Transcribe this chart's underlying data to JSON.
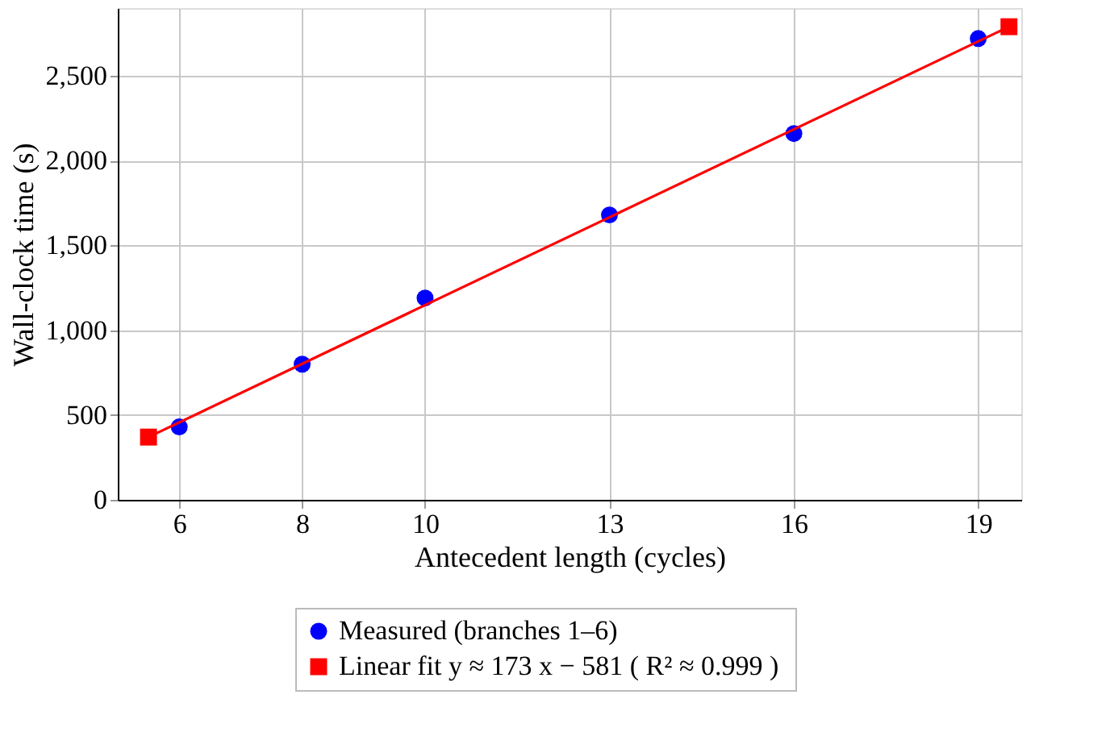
{
  "chart_data": {
    "type": "scatter",
    "xlabel": "Antecedent length (cycles)",
    "ylabel": "Wall-clock time (s)",
    "xlim": [
      5,
      19.7
    ],
    "xticks": [
      6,
      8,
      10,
      13,
      16,
      19
    ],
    "ylim": [
      0,
      2900
    ],
    "yticks": [
      0,
      500,
      {
        "value": 1000,
        "label": "1,000"
      },
      {
        "value": 1500,
        "label": "1,500"
      },
      {
        "value": 2000,
        "label": "2,000"
      },
      {
        "value": 2500,
        "label": "2,500"
      }
    ],
    "grid": true,
    "legend": "bottom",
    "series": [
      {
        "name": "Measured (branches 1–6)",
        "marker": "circle",
        "color": "#0000ff",
        "x": [
          6,
          8,
          10,
          13,
          16,
          19
        ],
        "values": [
          430,
          800,
          1190,
          1680,
          2160,
          2720
        ]
      },
      {
        "name": "Linear fit y ≈ 173 x − 581  ( R² ≈ 0.999 )",
        "type": "line",
        "marker": "square",
        "line_style": "solid",
        "color": "#ff0000",
        "x": [
          5.5,
          19.5
        ],
        "values": [
          370,
          2790
        ]
      }
    ]
  }
}
